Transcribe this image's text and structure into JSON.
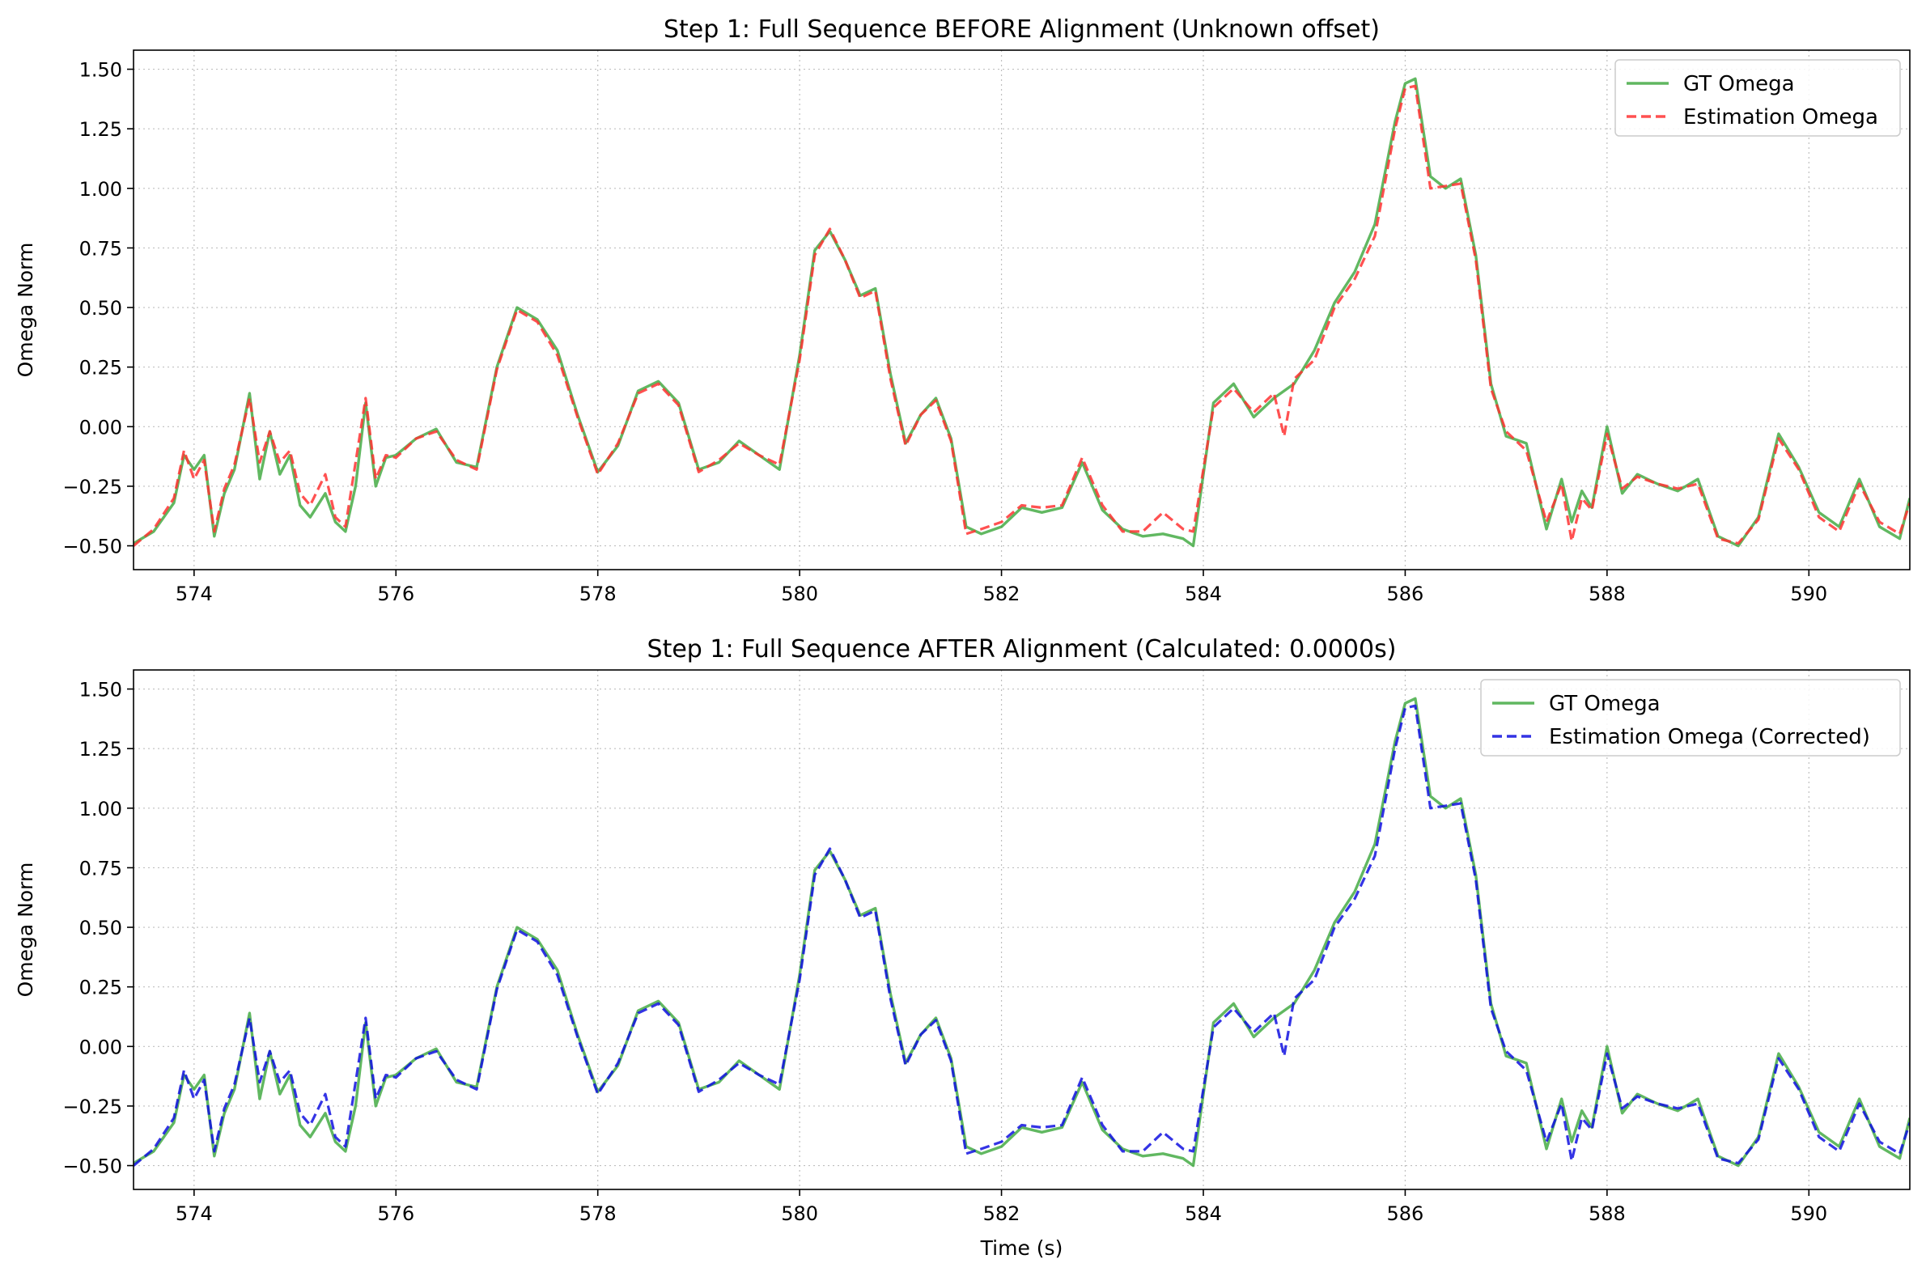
{
  "figure": {
    "xlabel": "Time (s)"
  },
  "colors": {
    "gt": "#2ca02c",
    "est_before": "#ff3333",
    "est_after": "#1010e0",
    "grid": "#b0b0b0",
    "axes": "#000000"
  },
  "chart_data": [
    {
      "type": "line",
      "title": "Step 1: Full Sequence BEFORE Alignment (Unknown offset)",
      "xlabel": "",
      "ylabel": "Omega Norm",
      "xlim": [
        573.4,
        591.0
      ],
      "ylim": [
        -0.6,
        1.58
      ],
      "xticks": [
        "574",
        "576",
        "578",
        "580",
        "582",
        "584",
        "586",
        "588",
        "590"
      ],
      "xtick_values": [
        574,
        576,
        578,
        580,
        582,
        584,
        586,
        588,
        590
      ],
      "yticks": [
        "−0.50",
        "−0.25",
        "0.00",
        "0.25",
        "0.50",
        "0.75",
        "1.00",
        "1.25",
        "1.50"
      ],
      "ytick_values": [
        -0.5,
        -0.25,
        0,
        0.25,
        0.5,
        0.75,
        1.0,
        1.25,
        1.5
      ],
      "grid": true,
      "legend": "top-right",
      "series": [
        {
          "name": "GT Omega",
          "style": "solid",
          "color": "#2ca02c",
          "x": [
            573.4,
            573.6,
            573.8,
            573.9,
            574.0,
            574.1,
            574.2,
            574.3,
            574.4,
            574.55,
            574.65,
            574.75,
            574.85,
            574.95,
            575.05,
            575.15,
            575.3,
            575.4,
            575.5,
            575.6,
            575.7,
            575.8,
            575.9,
            576.0,
            576.2,
            576.4,
            576.6,
            576.8,
            577.0,
            577.2,
            577.4,
            577.6,
            577.8,
            578.0,
            578.2,
            578.4,
            578.6,
            578.8,
            579.0,
            579.2,
            579.4,
            579.6,
            579.8,
            580.0,
            580.15,
            580.3,
            580.45,
            580.6,
            580.75,
            580.9,
            581.05,
            581.2,
            581.35,
            581.5,
            581.65,
            581.8,
            582.0,
            582.2,
            582.4,
            582.6,
            582.8,
            583.0,
            583.2,
            583.4,
            583.6,
            583.8,
            583.9,
            584.1,
            584.3,
            584.5,
            584.7,
            584.9,
            585.1,
            585.3,
            585.5,
            585.7,
            585.9,
            586.0,
            586.1,
            586.25,
            586.4,
            586.55,
            586.7,
            586.85,
            587.0,
            587.2,
            587.4,
            587.55,
            587.65,
            587.75,
            587.85,
            588.0,
            588.15,
            588.3,
            588.5,
            588.7,
            588.9,
            589.1,
            589.3,
            589.5,
            589.7,
            589.9,
            590.1,
            590.3,
            590.5,
            590.7,
            590.9,
            591.0
          ],
          "y": [
            -0.49,
            -0.44,
            -0.32,
            -0.12,
            -0.18,
            -0.12,
            -0.46,
            -0.28,
            -0.18,
            0.14,
            -0.22,
            -0.02,
            -0.2,
            -0.12,
            -0.33,
            -0.38,
            -0.28,
            -0.4,
            -0.44,
            -0.25,
            0.1,
            -0.25,
            -0.13,
            -0.12,
            -0.05,
            -0.01,
            -0.15,
            -0.17,
            0.25,
            0.5,
            0.45,
            0.32,
            0.05,
            -0.19,
            -0.08,
            0.15,
            0.19,
            0.1,
            -0.18,
            -0.15,
            -0.06,
            -0.12,
            -0.18,
            0.3,
            0.74,
            0.82,
            0.7,
            0.55,
            0.58,
            0.22,
            -0.07,
            0.05,
            0.12,
            -0.05,
            -0.42,
            -0.45,
            -0.42,
            -0.34,
            -0.36,
            -0.34,
            -0.15,
            -0.35,
            -0.43,
            -0.46,
            -0.45,
            -0.47,
            -0.5,
            0.1,
            0.18,
            0.04,
            0.12,
            0.18,
            0.32,
            0.52,
            0.65,
            0.85,
            1.28,
            1.44,
            1.46,
            1.05,
            1.0,
            1.04,
            0.72,
            0.18,
            -0.04,
            -0.07,
            -0.43,
            -0.22,
            -0.4,
            -0.27,
            -0.34,
            0.0,
            -0.28,
            -0.2,
            -0.24,
            -0.27,
            -0.22,
            -0.46,
            -0.5,
            -0.38,
            -0.03,
            -0.17,
            -0.36,
            -0.42,
            -0.22,
            -0.42,
            -0.47,
            -0.3
          ]
        },
        {
          "name": "Estimation Omega",
          "style": "dashed",
          "color": "#ff3333",
          "x": [
            573.4,
            573.6,
            573.8,
            573.9,
            574.0,
            574.1,
            574.2,
            574.3,
            574.4,
            574.55,
            574.65,
            574.75,
            574.85,
            574.95,
            575.05,
            575.15,
            575.3,
            575.4,
            575.5,
            575.6,
            575.7,
            575.8,
            575.9,
            576.0,
            576.2,
            576.4,
            576.6,
            576.8,
            577.0,
            577.2,
            577.4,
            577.6,
            577.8,
            578.0,
            578.2,
            578.4,
            578.6,
            578.8,
            579.0,
            579.2,
            579.4,
            579.6,
            579.8,
            580.0,
            580.15,
            580.3,
            580.45,
            580.6,
            580.75,
            580.9,
            581.05,
            581.2,
            581.35,
            581.5,
            581.65,
            581.8,
            582.0,
            582.2,
            582.4,
            582.6,
            582.8,
            583.0,
            583.2,
            583.4,
            583.6,
            583.8,
            583.9,
            584.1,
            584.3,
            584.5,
            584.7,
            584.8,
            584.9,
            585.1,
            585.3,
            585.5,
            585.7,
            585.9,
            586.0,
            586.1,
            586.25,
            586.4,
            586.55,
            586.7,
            586.85,
            587.0,
            587.2,
            587.4,
            587.55,
            587.65,
            587.75,
            587.85,
            588.0,
            588.15,
            588.3,
            588.5,
            588.7,
            588.9,
            589.1,
            589.3,
            589.5,
            589.7,
            589.9,
            590.1,
            590.3,
            590.5,
            590.7,
            590.9,
            591.0
          ],
          "y": [
            -0.5,
            -0.43,
            -0.3,
            -0.1,
            -0.22,
            -0.14,
            -0.44,
            -0.26,
            -0.16,
            0.12,
            -0.15,
            -0.02,
            -0.15,
            -0.1,
            -0.28,
            -0.33,
            -0.2,
            -0.38,
            -0.42,
            -0.15,
            0.12,
            -0.22,
            -0.12,
            -0.13,
            -0.05,
            -0.02,
            -0.14,
            -0.18,
            0.24,
            0.49,
            0.44,
            0.3,
            0.04,
            -0.2,
            -0.07,
            0.14,
            0.18,
            0.09,
            -0.19,
            -0.14,
            -0.07,
            -0.12,
            -0.16,
            0.28,
            0.72,
            0.83,
            0.7,
            0.54,
            0.57,
            0.2,
            -0.08,
            0.05,
            0.11,
            -0.06,
            -0.45,
            -0.43,
            -0.4,
            -0.33,
            -0.34,
            -0.33,
            -0.13,
            -0.33,
            -0.44,
            -0.44,
            -0.36,
            -0.43,
            -0.44,
            0.08,
            0.16,
            0.06,
            0.14,
            -0.04,
            0.2,
            0.28,
            0.5,
            0.62,
            0.8,
            1.25,
            1.42,
            1.43,
            1.0,
            1.01,
            1.02,
            0.7,
            0.16,
            -0.02,
            -0.1,
            -0.4,
            -0.24,
            -0.48,
            -0.3,
            -0.35,
            -0.03,
            -0.26,
            -0.21,
            -0.24,
            -0.26,
            -0.24,
            -0.47,
            -0.49,
            -0.39,
            -0.05,
            -0.18,
            -0.38,
            -0.44,
            -0.24,
            -0.4,
            -0.45,
            -0.32
          ]
        }
      ]
    },
    {
      "type": "line",
      "title": "Step 1: Full Sequence AFTER Alignment (Calculated: 0.0000s)",
      "xlabel": "Time (s)",
      "ylabel": "Omega Norm",
      "xlim": [
        573.4,
        591.0
      ],
      "ylim": [
        -0.6,
        1.58
      ],
      "xticks": [
        "574",
        "576",
        "578",
        "580",
        "582",
        "584",
        "586",
        "588",
        "590"
      ],
      "xtick_values": [
        574,
        576,
        578,
        580,
        582,
        584,
        586,
        588,
        590
      ],
      "yticks": [
        "−0.50",
        "−0.25",
        "0.00",
        "0.25",
        "0.50",
        "0.75",
        "1.00",
        "1.25",
        "1.50"
      ],
      "ytick_values": [
        -0.5,
        -0.25,
        0,
        0.25,
        0.5,
        0.75,
        1.0,
        1.25,
        1.5
      ],
      "grid": true,
      "legend": "top-right",
      "series": [
        {
          "name": "GT Omega",
          "style": "solid",
          "color": "#2ca02c",
          "x": [
            573.4,
            573.6,
            573.8,
            573.9,
            574.0,
            574.1,
            574.2,
            574.3,
            574.4,
            574.55,
            574.65,
            574.75,
            574.85,
            574.95,
            575.05,
            575.15,
            575.3,
            575.4,
            575.5,
            575.6,
            575.7,
            575.8,
            575.9,
            576.0,
            576.2,
            576.4,
            576.6,
            576.8,
            577.0,
            577.2,
            577.4,
            577.6,
            577.8,
            578.0,
            578.2,
            578.4,
            578.6,
            578.8,
            579.0,
            579.2,
            579.4,
            579.6,
            579.8,
            580.0,
            580.15,
            580.3,
            580.45,
            580.6,
            580.75,
            580.9,
            581.05,
            581.2,
            581.35,
            581.5,
            581.65,
            581.8,
            582.0,
            582.2,
            582.4,
            582.6,
            582.8,
            583.0,
            583.2,
            583.4,
            583.6,
            583.8,
            583.9,
            584.1,
            584.3,
            584.5,
            584.7,
            584.9,
            585.1,
            585.3,
            585.5,
            585.7,
            585.9,
            586.0,
            586.1,
            586.25,
            586.4,
            586.55,
            586.7,
            586.85,
            587.0,
            587.2,
            587.4,
            587.55,
            587.65,
            587.75,
            587.85,
            588.0,
            588.15,
            588.3,
            588.5,
            588.7,
            588.9,
            589.1,
            589.3,
            589.5,
            589.7,
            589.9,
            590.1,
            590.3,
            590.5,
            590.7,
            590.9,
            591.0
          ],
          "y": [
            -0.49,
            -0.44,
            -0.32,
            -0.12,
            -0.18,
            -0.12,
            -0.46,
            -0.28,
            -0.18,
            0.14,
            -0.22,
            -0.02,
            -0.2,
            -0.12,
            -0.33,
            -0.38,
            -0.28,
            -0.4,
            -0.44,
            -0.25,
            0.1,
            -0.25,
            -0.13,
            -0.12,
            -0.05,
            -0.01,
            -0.15,
            -0.17,
            0.25,
            0.5,
            0.45,
            0.32,
            0.05,
            -0.19,
            -0.08,
            0.15,
            0.19,
            0.1,
            -0.18,
            -0.15,
            -0.06,
            -0.12,
            -0.18,
            0.3,
            0.74,
            0.82,
            0.7,
            0.55,
            0.58,
            0.22,
            -0.07,
            0.05,
            0.12,
            -0.05,
            -0.42,
            -0.45,
            -0.42,
            -0.34,
            -0.36,
            -0.34,
            -0.15,
            -0.35,
            -0.43,
            -0.46,
            -0.45,
            -0.47,
            -0.5,
            0.1,
            0.18,
            0.04,
            0.12,
            0.18,
            0.32,
            0.52,
            0.65,
            0.85,
            1.28,
            1.44,
            1.46,
            1.05,
            1.0,
            1.04,
            0.72,
            0.18,
            -0.04,
            -0.07,
            -0.43,
            -0.22,
            -0.4,
            -0.27,
            -0.34,
            0.0,
            -0.28,
            -0.2,
            -0.24,
            -0.27,
            -0.22,
            -0.46,
            -0.5,
            -0.38,
            -0.03,
            -0.17,
            -0.36,
            -0.42,
            -0.22,
            -0.42,
            -0.47,
            -0.3
          ]
        },
        {
          "name": "Estimation Omega (Corrected)",
          "style": "dashed",
          "color": "#1010e0",
          "x": [
            573.4,
            573.6,
            573.8,
            573.9,
            574.0,
            574.1,
            574.2,
            574.3,
            574.4,
            574.55,
            574.65,
            574.75,
            574.85,
            574.95,
            575.05,
            575.15,
            575.3,
            575.4,
            575.5,
            575.6,
            575.7,
            575.8,
            575.9,
            576.0,
            576.2,
            576.4,
            576.6,
            576.8,
            577.0,
            577.2,
            577.4,
            577.6,
            577.8,
            578.0,
            578.2,
            578.4,
            578.6,
            578.8,
            579.0,
            579.2,
            579.4,
            579.6,
            579.8,
            580.0,
            580.15,
            580.3,
            580.45,
            580.6,
            580.75,
            580.9,
            581.05,
            581.2,
            581.35,
            581.5,
            581.65,
            581.8,
            582.0,
            582.2,
            582.4,
            582.6,
            582.8,
            583.0,
            583.2,
            583.4,
            583.6,
            583.8,
            583.9,
            584.1,
            584.3,
            584.5,
            584.7,
            584.8,
            584.9,
            585.1,
            585.3,
            585.5,
            585.7,
            585.9,
            586.0,
            586.1,
            586.25,
            586.4,
            586.55,
            586.7,
            586.85,
            587.0,
            587.2,
            587.4,
            587.55,
            587.65,
            587.75,
            587.85,
            588.0,
            588.15,
            588.3,
            588.5,
            588.7,
            588.9,
            589.1,
            589.3,
            589.5,
            589.7,
            589.9,
            590.1,
            590.3,
            590.5,
            590.7,
            590.9,
            591.0
          ],
          "y": [
            -0.5,
            -0.43,
            -0.3,
            -0.1,
            -0.22,
            -0.14,
            -0.44,
            -0.26,
            -0.16,
            0.12,
            -0.15,
            -0.02,
            -0.15,
            -0.1,
            -0.28,
            -0.33,
            -0.2,
            -0.38,
            -0.42,
            -0.15,
            0.12,
            -0.22,
            -0.12,
            -0.13,
            -0.05,
            -0.02,
            -0.14,
            -0.18,
            0.24,
            0.49,
            0.44,
            0.3,
            0.04,
            -0.2,
            -0.07,
            0.14,
            0.18,
            0.09,
            -0.19,
            -0.14,
            -0.07,
            -0.12,
            -0.16,
            0.28,
            0.72,
            0.83,
            0.7,
            0.54,
            0.57,
            0.2,
            -0.08,
            0.05,
            0.11,
            -0.06,
            -0.45,
            -0.43,
            -0.4,
            -0.33,
            -0.34,
            -0.33,
            -0.13,
            -0.33,
            -0.44,
            -0.44,
            -0.36,
            -0.43,
            -0.44,
            0.08,
            0.16,
            0.06,
            0.14,
            -0.04,
            0.2,
            0.28,
            0.5,
            0.62,
            0.8,
            1.25,
            1.42,
            1.43,
            1.0,
            1.01,
            1.02,
            0.7,
            0.16,
            -0.02,
            -0.1,
            -0.4,
            -0.24,
            -0.48,
            -0.3,
            -0.35,
            -0.03,
            -0.26,
            -0.21,
            -0.24,
            -0.26,
            -0.24,
            -0.47,
            -0.49,
            -0.39,
            -0.05,
            -0.18,
            -0.38,
            -0.44,
            -0.24,
            -0.4,
            -0.45,
            -0.32
          ]
        }
      ]
    }
  ]
}
